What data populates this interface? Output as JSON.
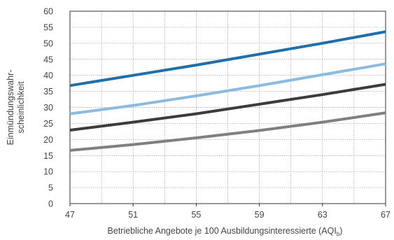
{
  "chart_data": {
    "type": "line",
    "title": "",
    "xlabel": "Betriebliche Angebote je 100 Ausbildungsinteressierte (AQI",
    "xlabel_subscript": "b",
    "xlabel_suffix": ")",
    "ylabel_lines": [
      "Einmündungswahr-",
      "scheinlichkeit"
    ],
    "xlim": [
      47,
      67
    ],
    "ylim": [
      0,
      60
    ],
    "x_ticks": [
      47,
      51,
      55,
      59,
      63,
      67
    ],
    "y_ticks": [
      0,
      5,
      10,
      15,
      20,
      25,
      30,
      35,
      40,
      45,
      50,
      55,
      60
    ],
    "grid": true,
    "x": [
      47,
      51,
      55,
      59,
      63,
      67
    ],
    "series": [
      {
        "color": "#1f6faa",
        "values": [
          36.8,
          40.0,
          43.2,
          46.6,
          50.0,
          53.6
        ]
      },
      {
        "color": "#8bbcdd",
        "values": [
          28.0,
          30.6,
          33.6,
          36.8,
          40.2,
          43.6
        ]
      },
      {
        "color": "#3c3c3c",
        "values": [
          22.9,
          25.4,
          28.0,
          31.0,
          34.0,
          37.2
        ]
      },
      {
        "color": "#808080",
        "values": [
          16.6,
          18.4,
          20.5,
          22.8,
          25.4,
          28.3
        ]
      }
    ]
  }
}
